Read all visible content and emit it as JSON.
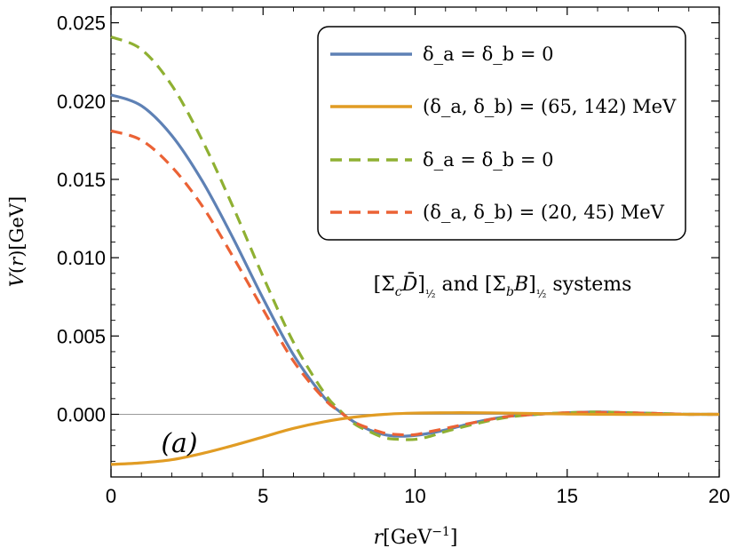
{
  "chart_data": {
    "type": "line",
    "title": "",
    "xlabel": "r[GeV⁻¹]",
    "ylabel": "V(r)[GeV]",
    "xlim": [
      0,
      20
    ],
    "ylim": [
      -0.004,
      0.026
    ],
    "xticks": [
      {
        "value": 0,
        "label": "0"
      },
      {
        "value": 5,
        "label": "5"
      },
      {
        "value": 10,
        "label": "10"
      },
      {
        "value": 15,
        "label": "15"
      },
      {
        "value": 20,
        "label": "20"
      }
    ],
    "yticks": [
      {
        "value": 0.0,
        "label": "0.000"
      },
      {
        "value": 0.005,
        "label": "0.005"
      },
      {
        "value": 0.01,
        "label": "0.010"
      },
      {
        "value": 0.015,
        "label": "0.015"
      },
      {
        "value": 0.02,
        "label": "0.020"
      },
      {
        "value": 0.025,
        "label": "0.025"
      }
    ],
    "annotations": [
      {
        "name": "panel-label",
        "text": "(a)"
      },
      {
        "name": "systems-label",
        "text": "[Σ_c D̄]_{1/2} and [Σ_b B]_{1/2} systems"
      }
    ],
    "legend": {
      "placement": "top-right",
      "entries": [
        {
          "label": "δ_a = δ_b = 0",
          "color": "#5E81B5",
          "dash": "solid"
        },
        {
          "label": "(δ_a, δ_b) = (65, 142) MeV",
          "color": "#E19C24",
          "dash": "solid"
        },
        {
          "label": "δ_a = δ_b = 0",
          "color": "#8FB032",
          "dash": "dashed"
        },
        {
          "label": "(δ_a, δ_b) = (20, 45) MeV",
          "color": "#EB6235",
          "dash": "dashed"
        }
      ]
    },
    "series": [
      {
        "name": "delta-zero-solid",
        "color": "#5E81B5",
        "dash": "solid",
        "x": [
          0,
          1,
          2,
          3,
          4,
          5,
          6,
          7,
          7.5,
          8,
          8.5,
          9,
          9.5,
          10,
          10.5,
          11,
          12,
          13,
          14,
          15,
          16,
          17,
          18,
          19,
          20
        ],
        "y": [
          0.0204,
          0.0197,
          0.0178,
          0.0149,
          0.0113,
          0.0074,
          0.0038,
          0.0011,
          0.0002,
          -0.0005,
          -0.001,
          -0.0013,
          -0.0014,
          -0.00135,
          -0.0012,
          -0.001,
          -0.0005,
          -0.00015,
          0.0,
          0.0001,
          0.00015,
          0.0001,
          5e-05,
          0.0,
          0.0
        ]
      },
      {
        "name": "delta-65-142-solid",
        "color": "#E19C24",
        "dash": "solid",
        "x": [
          0,
          1,
          2,
          3,
          4,
          5,
          6,
          7,
          8,
          9,
          10,
          11,
          12,
          13,
          14,
          15,
          16,
          17,
          18,
          19,
          20
        ],
        "y": [
          -0.0032,
          -0.0031,
          -0.0029,
          -0.0025,
          -0.002,
          -0.00145,
          -0.0009,
          -0.00048,
          -0.00018,
          0.0,
          8e-05,
          0.0001,
          0.0001,
          8e-05,
          5e-05,
          2e-05,
          0.0,
          -1e-05,
          -1e-05,
          0.0,
          0.0
        ]
      },
      {
        "name": "delta-zero-dashed",
        "color": "#8FB032",
        "dash": "dashed",
        "x": [
          0,
          1,
          2,
          3,
          4,
          5,
          6,
          7,
          7.5,
          8,
          8.5,
          9,
          9.5,
          10,
          10.5,
          11,
          12,
          13,
          14,
          15,
          16,
          17,
          18,
          19,
          20
        ],
        "y": [
          0.0241,
          0.0233,
          0.021,
          0.0175,
          0.0133,
          0.0088,
          0.0046,
          0.0014,
          0.0003,
          -0.0006,
          -0.0011,
          -0.0015,
          -0.0016,
          -0.0016,
          -0.0014,
          -0.0011,
          -0.0006,
          -0.0002,
          0.0,
          0.0001,
          0.00015,
          0.0001,
          5e-05,
          0.0,
          0.0
        ]
      },
      {
        "name": "delta-20-45-dashed",
        "color": "#EB6235",
        "dash": "dashed",
        "x": [
          0,
          1,
          2,
          3,
          4,
          5,
          6,
          7,
          7.5,
          8,
          8.5,
          9,
          9.5,
          10,
          10.5,
          11,
          12,
          13,
          14,
          15,
          16,
          17,
          18,
          19,
          20
        ],
        "y": [
          0.0181,
          0.0175,
          0.0158,
          0.0133,
          0.0101,
          0.0067,
          0.0034,
          0.001,
          0.0002,
          -0.0005,
          -0.0009,
          -0.0012,
          -0.0013,
          -0.0013,
          -0.0011,
          -0.0009,
          -0.0005,
          -0.00015,
          0.0,
          0.0001,
          0.00012,
          0.0001,
          5e-05,
          0.0,
          0.0
        ]
      }
    ]
  }
}
